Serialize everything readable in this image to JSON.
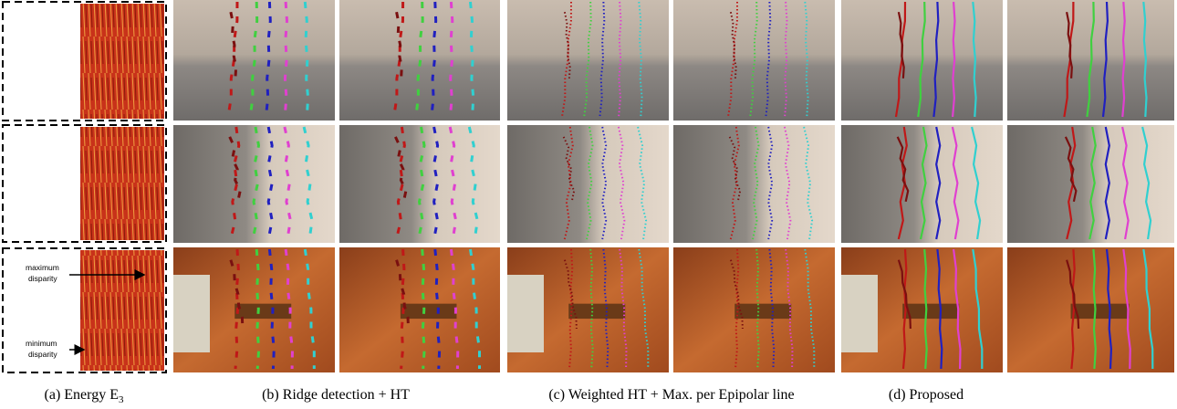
{
  "figure": {
    "annotations": {
      "maximum": [
        "maximum",
        "disparity"
      ],
      "minimum": [
        "minimum",
        "disparity"
      ]
    },
    "captions": [
      {
        "text": "(a) Energy E",
        "subscript": "3"
      },
      {
        "text": "(b) Ridge detection + HT"
      },
      {
        "text": "(c) Weighted HT + Max. per Epipolar line"
      },
      {
        "text": "(d) Proposed"
      }
    ]
  }
}
